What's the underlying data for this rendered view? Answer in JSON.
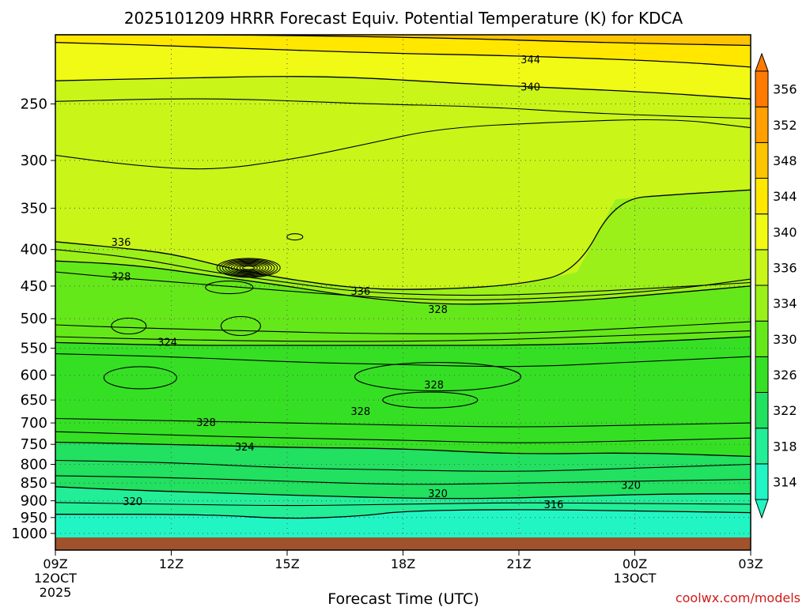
{
  "chart_data": {
    "type": "heatmap",
    "title": "2025101209 HRRR Forecast Equiv. Potential Temperature (K) for KDCA",
    "xlabel": "Forecast Time (UTC)",
    "ylabel": "",
    "x_ticks": [
      {
        "label": "09Z",
        "hour": 0,
        "sub1": "12OCT",
        "sub2": "2025"
      },
      {
        "label": "12Z",
        "hour": 3,
        "sub1": "",
        "sub2": ""
      },
      {
        "label": "15Z",
        "hour": 6,
        "sub1": "",
        "sub2": ""
      },
      {
        "label": "18Z",
        "hour": 9,
        "sub1": "",
        "sub2": ""
      },
      {
        "label": "21Z",
        "hour": 12,
        "sub1": "",
        "sub2": ""
      },
      {
        "label": "00Z",
        "hour": 15,
        "sub1": "13OCT",
        "sub2": ""
      },
      {
        "label": "03Z",
        "hour": 18,
        "sub1": "",
        "sub2": ""
      }
    ],
    "xlim": [
      0,
      18
    ],
    "y_ticks": [
      250,
      300,
      350,
      400,
      450,
      500,
      550,
      600,
      650,
      700,
      750,
      800,
      850,
      900,
      950,
      1000
    ],
    "ylim": [
      200,
      1013
    ],
    "y_scale": "log-pressure",
    "grid": true,
    "colorbar": {
      "levels": [
        314,
        318,
        322,
        326,
        330,
        334,
        336,
        340,
        344,
        348,
        352,
        356
      ],
      "colors": [
        "#22f5c4",
        "#22ee98",
        "#22e060",
        "#35e024",
        "#65e81a",
        "#9cf019",
        "#c9f518",
        "#f0fa14",
        "#ffe700",
        "#ffc400",
        "#ff9f00",
        "#ff7a00"
      ],
      "extend": "both"
    },
    "contour_labels": [
      {
        "text": "344",
        "hour": 12.3,
        "p": 217
      },
      {
        "text": "340",
        "hour": 12.3,
        "p": 237
      },
      {
        "text": "336",
        "hour": 1.7,
        "p": 391
      },
      {
        "text": "336",
        "hour": 7.9,
        "p": 458
      },
      {
        "text": "328",
        "hour": 1.7,
        "p": 437
      },
      {
        "text": "328",
        "hour": 9.9,
        "p": 486
      },
      {
        "text": "324",
        "hour": 2.9,
        "p": 540
      },
      {
        "text": "328",
        "hour": 9.8,
        "p": 620
      },
      {
        "text": "328",
        "hour": 7.9,
        "p": 675
      },
      {
        "text": "328",
        "hour": 3.9,
        "p": 700
      },
      {
        "text": "324",
        "hour": 4.9,
        "p": 757
      },
      {
        "text": "320",
        "hour": 14.9,
        "p": 857
      },
      {
        "text": "320",
        "hour": 9.9,
        "p": 880
      },
      {
        "text": "320",
        "hour": 2.0,
        "p": 903
      },
      {
        "text": "316",
        "hour": 12.9,
        "p": 912
      }
    ]
  },
  "credit": "coolwx.com/models"
}
